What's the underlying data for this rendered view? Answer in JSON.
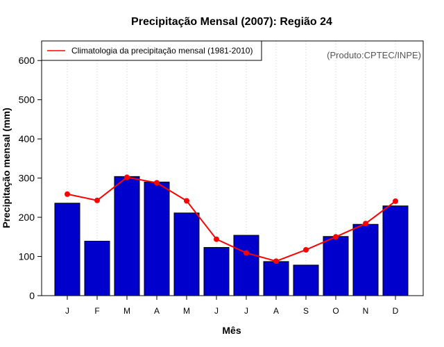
{
  "chart_data": {
    "type": "bar",
    "title": "Precipitação Mensal (2007): Região 24",
    "xlabel": "Mês",
    "ylabel": "Precipitação mensal (mm)",
    "ylim": [
      0,
      650
    ],
    "yticks": [
      0,
      100,
      200,
      300,
      400,
      500,
      600
    ],
    "ytick_labels": [
      "0",
      "100",
      "200",
      "300",
      "400",
      "500",
      "600"
    ],
    "categories": [
      "J",
      "F",
      "M",
      "A",
      "M",
      "J",
      "J",
      "A",
      "S",
      "O",
      "N",
      "D"
    ],
    "series": [
      {
        "name": "Precipitação mensal 2007",
        "kind": "bar",
        "color": "#0000cd",
        "values": [
          236,
          139,
          304,
          290,
          211,
          123,
          154,
          87,
          78,
          151,
          182,
          229
        ]
      },
      {
        "name": "Climatologia da precipitação mensal (1981-2010)",
        "kind": "line",
        "color": "#ff0000",
        "values": [
          259,
          243,
          302,
          288,
          242,
          144,
          109,
          88,
          117,
          150,
          184,
          241
        ]
      }
    ],
    "legend": {
      "position": "top-left",
      "entries": [
        "Climatologia da precipitação mensal (1981-2010)"
      ]
    },
    "credit": "(Produto:CPTEC/INPE)",
    "grid": {
      "vertical_dotted": true,
      "horizontal": false
    }
  },
  "colors": {
    "bar_fill": "#0000cd",
    "line": "#ff0000",
    "grid": "#cccccc",
    "frame": "#000000"
  }
}
